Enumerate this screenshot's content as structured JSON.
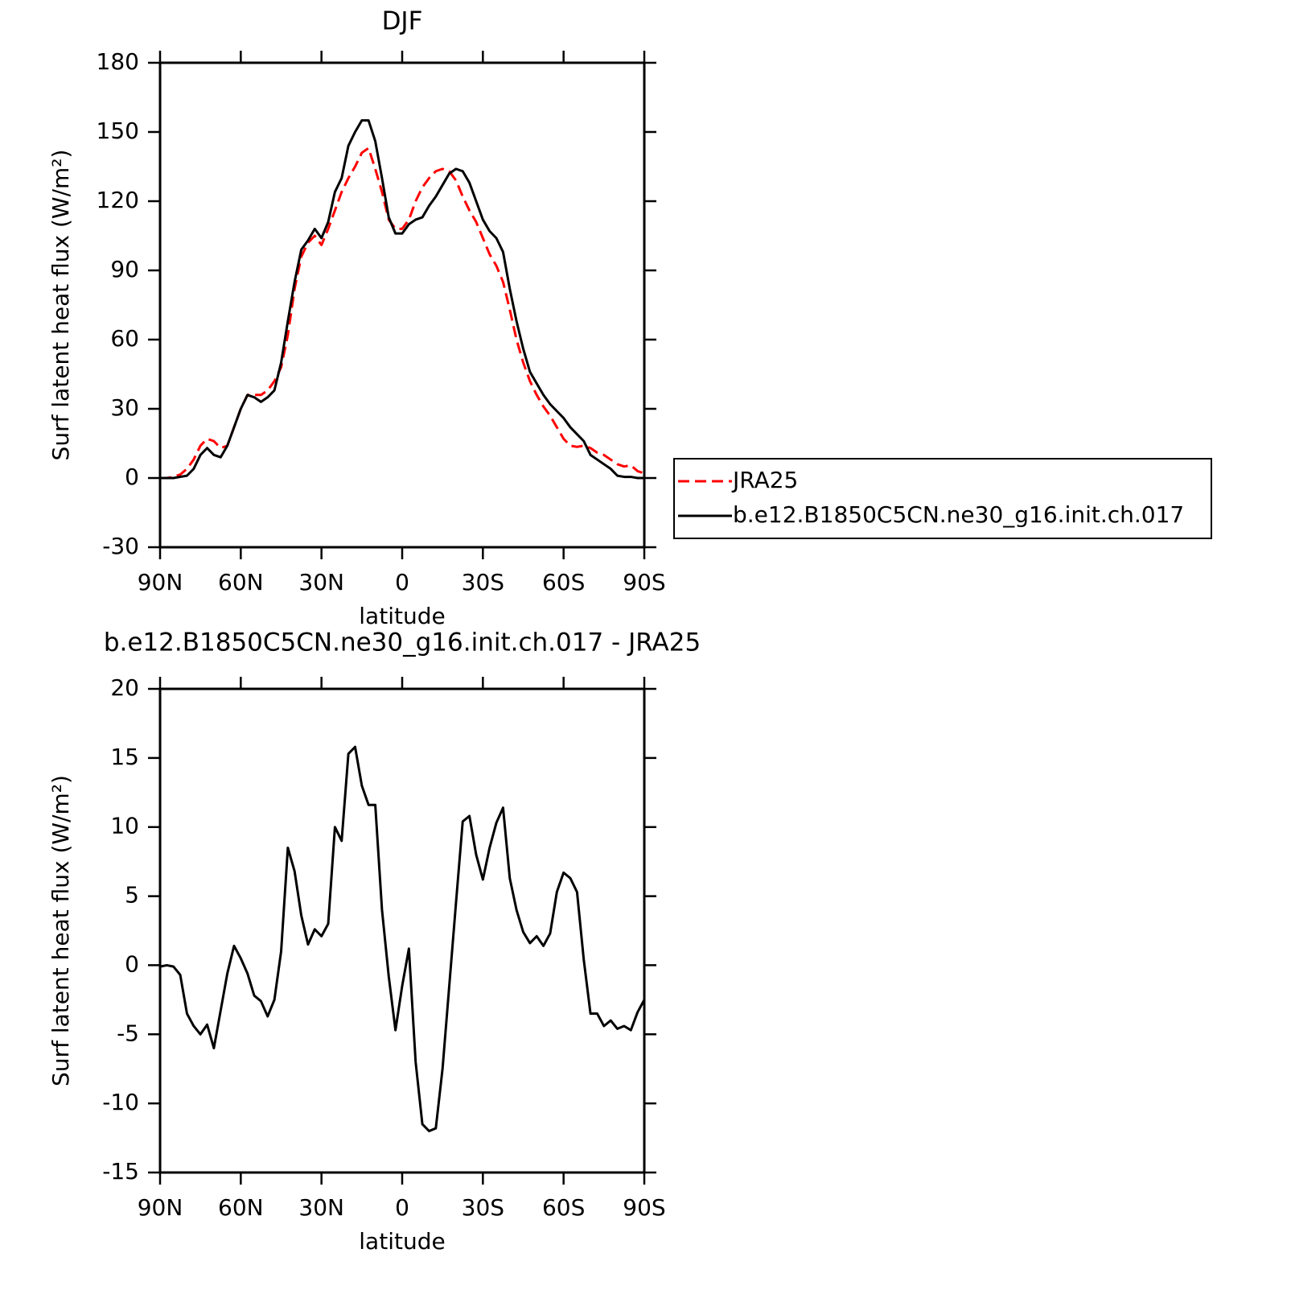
{
  "chart_data": [
    {
      "type": "line",
      "title": "DJF",
      "x_label": "latitude",
      "y_label": "Surf latent heat flux (W/m²)",
      "x": [
        90,
        87.5,
        85,
        82.5,
        80,
        77.5,
        75,
        72.5,
        70,
        67.5,
        65,
        62.5,
        60,
        57.5,
        55,
        52.5,
        50,
        47.5,
        45,
        42.5,
        40,
        37.5,
        35,
        32.5,
        30,
        27.5,
        25,
        22.5,
        20,
        17.5,
        15,
        12.5,
        10,
        7.5,
        5,
        2.5,
        0,
        -2.5,
        -5,
        -7.5,
        -10,
        -12.5,
        -15,
        -17.5,
        -20,
        -22.5,
        -25,
        -27.5,
        -30,
        -32.5,
        -35,
        -37.5,
        -40,
        -42.5,
        -45,
        -47.5,
        -50,
        -52.5,
        -55,
        -57.5,
        -60,
        -62.5,
        -65,
        -67.5,
        -70,
        -72.5,
        -75,
        -77.5,
        -80,
        -82.5,
        -85,
        -87.5,
        -90
      ],
      "series": [
        {
          "name": "JRA25",
          "color": "#ff0000",
          "line_style": "dashed",
          "values": [
            0,
            0,
            0.5,
            1.5,
            4,
            8,
            14,
            17,
            16,
            13,
            14,
            22,
            30,
            36,
            36,
            36,
            38,
            42,
            48,
            62,
            82,
            96,
            102,
            105,
            101,
            108,
            116,
            124,
            130,
            135,
            141,
            143,
            134,
            124,
            112,
            108,
            108,
            112,
            120,
            126,
            130,
            133,
            134,
            133,
            129,
            122,
            116,
            111,
            104,
            97,
            92,
            85,
            73,
            60,
            50,
            42,
            36,
            31,
            27,
            22,
            17,
            14,
            13.5,
            14,
            13,
            11,
            10,
            8,
            6,
            5,
            5.5,
            3,
            2
          ]
        },
        {
          "name": "b.e12.B1850C5CN.ne30_g16.init.ch.017",
          "color": "#000000",
          "line_style": "solid",
          "values": [
            0,
            0,
            0,
            0.5,
            1,
            4,
            10,
            13,
            10,
            9,
            14,
            22,
            30,
            36,
            35,
            33,
            35,
            38,
            50,
            68,
            85,
            99,
            103,
            108,
            104,
            111,
            124,
            130,
            144,
            150,
            155,
            155,
            146,
            130,
            113,
            106,
            106,
            110,
            112,
            113,
            118,
            122,
            127,
            132,
            134,
            133,
            128,
            120,
            112,
            107,
            104,
            98,
            82,
            68,
            56,
            46,
            41,
            36,
            32,
            29,
            26,
            22,
            19,
            16,
            10,
            8,
            6,
            4,
            1,
            0.5,
            0.5,
            0,
            0
          ]
        }
      ],
      "xlim": [
        90,
        -90
      ],
      "ylim": [
        -30,
        180
      ],
      "xticks": [
        {
          "value": 90,
          "label": "90N"
        },
        {
          "value": 60,
          "label": "60N"
        },
        {
          "value": 30,
          "label": "30N"
        },
        0,
        {
          "value": -30,
          "label": "30S"
        },
        {
          "value": -60,
          "label": "60S"
        },
        {
          "value": -90,
          "label": "90S"
        }
      ],
      "yticks": [
        -30,
        0,
        30,
        60,
        90,
        120,
        150,
        180
      ],
      "legend": "right"
    },
    {
      "type": "line",
      "title": "b.e12.B1850C5CN.ne30_g16.init.ch.017 - JRA25",
      "x_label": "latitude",
      "y_label": "Surf latent heat flux (W/m²)",
      "x": [
        90,
        87.5,
        85,
        82.5,
        80,
        77.5,
        75,
        72.5,
        70,
        67.5,
        65,
        62.5,
        60,
        57.5,
        55,
        52.5,
        50,
        47.5,
        45,
        42.5,
        40,
        37.5,
        35,
        32.5,
        30,
        27.5,
        25,
        22.5,
        20,
        17.5,
        15,
        12.5,
        10,
        7.5,
        5,
        2.5,
        0,
        -2.5,
        -5,
        -7.5,
        -10,
        -12.5,
        -15,
        -17.5,
        -20,
        -22.5,
        -25,
        -27.5,
        -30,
        -32.5,
        -35,
        -37.5,
        -40,
        -42.5,
        -45,
        -47.5,
        -50,
        -52.5,
        -55,
        -57.5,
        -60,
        -62.5,
        -65,
        -67.5,
        -70,
        -72.5,
        -75,
        -77.5,
        -80,
        -82.5,
        -85,
        -87.5,
        -90
      ],
      "series": [
        {
          "color": "#000000",
          "line_style": "solid",
          "values": [
            -0.1,
            0,
            -0.1,
            -0.7,
            -3.5,
            -4.4,
            -5,
            -4.3,
            -6,
            -3.3,
            -0.6,
            1.4,
            0.5,
            -0.6,
            -2.2,
            -2.6,
            -3.7,
            -2.5,
            1,
            8.5,
            6.8,
            3.6,
            1.5,
            2.6,
            2.1,
            3,
            10,
            9,
            15.3,
            15.8,
            13,
            11.6,
            11.6,
            4,
            -0.8,
            -4.7,
            -1.5,
            1.2,
            -7,
            -11.5,
            -12,
            -11.8,
            -7.5,
            -1.5,
            4.5,
            10.4,
            10.8,
            8,
            6.2,
            8.5,
            10.3,
            11.4,
            6.3,
            4,
            2.4,
            1.6,
            2.1,
            1.4,
            2.3,
            5.3,
            6.7,
            6.3,
            5.3,
            0.4,
            -3.5,
            -3.5,
            -4.4,
            -4,
            -4.6,
            -4.4,
            -4.7,
            -3.4,
            -2.5
          ]
        }
      ],
      "xlim": [
        90,
        -90
      ],
      "ylim": [
        -15,
        20
      ],
      "xticks": [
        {
          "value": 90,
          "label": "90N"
        },
        {
          "value": 60,
          "label": "60N"
        },
        {
          "value": 30,
          "label": "30N"
        },
        0,
        {
          "value": -30,
          "label": "30S"
        },
        {
          "value": -60,
          "label": "60S"
        },
        {
          "value": -90,
          "label": "90S"
        }
      ],
      "yticks": [
        -15,
        -10,
        -5,
        0,
        5,
        10,
        15,
        20
      ]
    }
  ]
}
